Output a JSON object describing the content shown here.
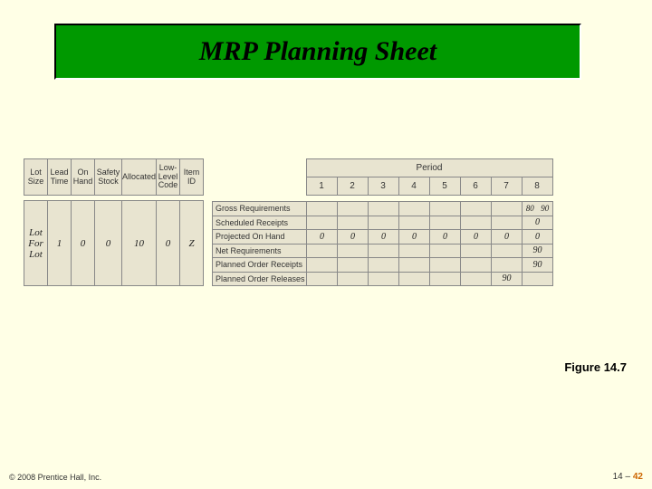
{
  "title": "MRP Planning Sheet",
  "param_headers": [
    "Lot\nSize",
    "Lead\nTime",
    "On\nHand",
    "Safety\nStock",
    "Allocated",
    "Low-\nLevel\nCode",
    "Item\nID"
  ],
  "param_values": [
    "Lot\nFor\nLot",
    "1",
    "0",
    "0",
    "10",
    "0",
    "Z"
  ],
  "period_label": "Period",
  "periods": [
    "1",
    "2",
    "3",
    "4",
    "5",
    "6",
    "7",
    "8"
  ],
  "mrp_rows": [
    {
      "label": "Gross Requirements",
      "cells": [
        "",
        "",
        "",
        "",
        "",
        "",
        "",
        "80  90"
      ]
    },
    {
      "label": "Scheduled Receipts",
      "cells": [
        "",
        "",
        "",
        "",
        "",
        "",
        "",
        "0"
      ]
    },
    {
      "label": "Projected On Hand",
      "cells": [
        "0",
        "0",
        "0",
        "0",
        "0",
        "0",
        "0",
        "0"
      ]
    },
    {
      "label": "Net Requirements",
      "cells": [
        "",
        "",
        "",
        "",
        "",
        "",
        "",
        "90"
      ]
    },
    {
      "label": "Planned Order Receipts",
      "cells": [
        "",
        "",
        "",
        "",
        "",
        "",
        "",
        "90"
      ]
    },
    {
      "label": "Planned Order Releases",
      "cells": [
        "",
        "",
        "",
        "",
        "",
        "",
        "90",
        ""
      ]
    }
  ],
  "figure_label": "Figure 14.7",
  "copyright": "© 2008 Prentice Hall, Inc.",
  "page_prefix": "14 – ",
  "page_current": "42",
  "colors": {
    "page_bg": "#ffffe6",
    "title_bg": "#009900",
    "cell_bg": "#e8e4d0",
    "border": "#888888",
    "accent": "#cc6600"
  }
}
